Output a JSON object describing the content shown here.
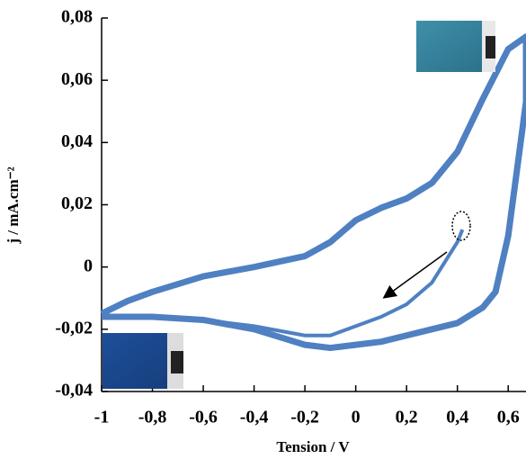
{
  "chart_data": {
    "type": "line",
    "x_label": "Tension / V",
    "y_label": "j / mA.cm⁻²",
    "xlim": [
      -1,
      0.67
    ],
    "ylim": [
      -0.04,
      0.08
    ],
    "xticks": [
      {
        "value": -1,
        "label": "-1"
      },
      {
        "value": -0.8,
        "label": "-0,8"
      },
      {
        "value": -0.6,
        "label": "-0,6"
      },
      {
        "value": -0.4,
        "label": "-0,4"
      },
      {
        "value": -0.2,
        "label": "-0,2"
      },
      0,
      {
        "value": 0.2,
        "label": "0,2"
      },
      {
        "value": 0.4,
        "label": "0,4"
      },
      {
        "value": 0.6,
        "label": "0,6"
      }
    ],
    "yticks": [
      {
        "value": -0.04,
        "label": "-0,04"
      },
      {
        "value": -0.02,
        "label": "-0,02"
      },
      0,
      {
        "value": 0.02,
        "label": "0,02"
      },
      {
        "value": 0.04,
        "label": "0,04"
      },
      {
        "value": 0.06,
        "label": "0,06"
      },
      {
        "value": 0.08,
        "label": "0,08"
      }
    ],
    "series": [
      {
        "color": "#4f80c2",
        "x": [
          -1,
          -0.9,
          -0.8,
          -0.6,
          -0.4,
          -0.2,
          -0.1,
          0,
          0.1,
          0.2,
          0.3,
          0.4,
          0.5,
          0.6,
          0.67,
          0.67,
          0.6,
          0.55,
          0.5,
          0.4,
          0.3,
          0.2,
          0.1,
          0,
          -0.1,
          -0.2,
          -0.4,
          -0.6,
          -0.8,
          -1
        ],
        "values": [
          -0.015,
          -0.011,
          -0.008,
          -0.003,
          0,
          0.0035,
          0.008,
          0.015,
          0.019,
          0.022,
          0.027,
          0.037,
          0.054,
          0.07,
          0.074,
          0.053,
          0.01,
          -0.008,
          -0.013,
          -0.018,
          -0.02,
          -0.022,
          -0.024,
          -0.025,
          -0.026,
          -0.025,
          -0.02,
          -0.017,
          -0.016,
          -0.016
        ]
      },
      {
        "color": "#4f80c2",
        "x": [
          0.42,
          0.4,
          0.3,
          0.2,
          0.1,
          0,
          -0.1,
          -0.2,
          -0.4,
          -0.6,
          -0.8,
          -1
        ],
        "values": [
          0.012,
          0.008,
          -0.005,
          -0.012,
          -0.016,
          -0.019,
          -0.022,
          -0.022,
          -0.019,
          -0.017,
          -0.016,
          -0.016
        ]
      }
    ]
  }
}
